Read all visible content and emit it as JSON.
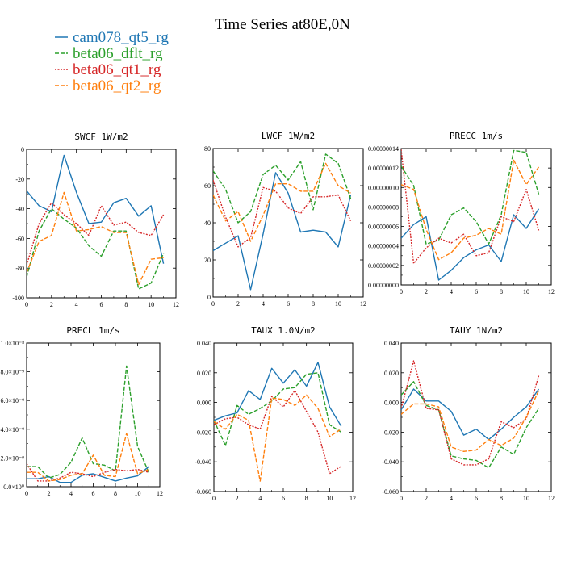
{
  "suptitle": "Time Series at80E,0N",
  "legend": [
    {
      "label": "cam078_qt5_rg",
      "color": "#1f77b4",
      "dash": "solid"
    },
    {
      "label": "beta06_dflt_rg",
      "color": "#2ca02c",
      "dash": "dashed"
    },
    {
      "label": "beta06_qt1_rg",
      "color": "#d62728",
      "dash": "dotted"
    },
    {
      "label": "beta06_qt2_rg",
      "color": "#ff7f0e",
      "dash": "dashed"
    }
  ],
  "chart_data": [
    {
      "type": "line",
      "title": "SWCF   1W/m2",
      "xlim": [
        0,
        12
      ],
      "xticks": [
        "0",
        "2",
        "4",
        "6",
        "8",
        "10",
        "12"
      ],
      "ylim": [
        -100,
        0
      ],
      "yticks": [
        "-100",
        "-80",
        "-60",
        "-40",
        "-20",
        "0"
      ],
      "x": [
        0,
        1,
        2,
        3,
        4,
        5,
        6,
        7,
        8,
        9,
        10,
        11
      ],
      "series": [
        {
          "name": "cam078_qt5_rg",
          "values": [
            -28,
            -38,
            -42,
            -4,
            -29,
            -50,
            -49,
            -36,
            -33,
            -45,
            -38,
            -77
          ]
        },
        {
          "name": "beta06_dflt_rg",
          "values": [
            -86,
            -55,
            -40,
            -47,
            -53,
            -65,
            -72,
            -55,
            -55,
            -94,
            -90,
            -70
          ]
        },
        {
          "name": "beta06_qt1_rg",
          "values": [
            -78,
            -50,
            -36,
            -44,
            -50,
            -58,
            -38,
            -51,
            -49,
            -56,
            -58,
            -44
          ]
        },
        {
          "name": "beta06_qt2_rg",
          "values": [
            -83,
            -62,
            -58,
            -29,
            -55,
            -54,
            -52,
            -56,
            -56,
            -91,
            -74,
            -73
          ]
        }
      ]
    },
    {
      "type": "line",
      "title": "LWCF   1W/m2",
      "xlim": [
        0,
        12
      ],
      "xticks": [
        "0",
        "2",
        "4",
        "6",
        "8",
        "10",
        "12"
      ],
      "ylim": [
        0,
        80
      ],
      "yticks": [
        "0",
        "20",
        "40",
        "60",
        "80"
      ],
      "x": [
        0,
        1,
        2,
        3,
        4,
        5,
        6,
        7,
        8,
        9,
        10,
        11
      ],
      "series": [
        {
          "name": "cam078_qt5_rg",
          "values": [
            25,
            29,
            33,
            4,
            34,
            67,
            56,
            35,
            36,
            35,
            27,
            55
          ]
        },
        {
          "name": "beta06_dflt_rg",
          "values": [
            68,
            58,
            40,
            46,
            66,
            71,
            63,
            73,
            47,
            77,
            72,
            53
          ]
        },
        {
          "name": "beta06_qt1_rg",
          "values": [
            63,
            43,
            27,
            32,
            59,
            57,
            48,
            45,
            54,
            54,
            55,
            41
          ]
        },
        {
          "name": "beta06_qt2_rg",
          "values": [
            55,
            41,
            46,
            30,
            44,
            61,
            61,
            57,
            57,
            72,
            60,
            56
          ]
        }
      ]
    },
    {
      "type": "line",
      "title": "PRECC   1m/s",
      "xlim": [
        0,
        12
      ],
      "xticks": [
        "0",
        "2",
        "4",
        "6",
        "8",
        "10",
        "12"
      ],
      "ylim": [
        0,
        1.4e-07
      ],
      "yticks": [
        "0.00000000",
        "0.00000002",
        "0.00000004",
        "0.00000006",
        "0.00000008",
        "0.00000010",
        "0.00000012",
        "0.00000014"
      ],
      "x": [
        0,
        1,
        2,
        3,
        4,
        5,
        6,
        7,
        8,
        9,
        10,
        11
      ],
      "series": [
        {
          "name": "cam078_qt5_rg",
          "values": [
            4.8e-08,
            6.2e-08,
            7e-08,
            5e-09,
            1.5e-08,
            2.8e-08,
            3.6e-08,
            4.1e-08,
            2.4e-08,
            7.2e-08,
            5.8e-08,
            7.8e-08
          ]
        },
        {
          "name": "beta06_dflt_rg",
          "values": [
            1.22e-07,
            1.02e-07,
            4.2e-08,
            4.6e-08,
            7.2e-08,
            7.9e-08,
            6.5e-08,
            4.2e-08,
            7.2e-08,
            1.38e-07,
            1.36e-07,
            9.3e-08
          ]
        },
        {
          "name": "beta06_qt1_rg",
          "values": [
            1.39e-07,
            2.2e-08,
            3.8e-08,
            4.8e-08,
            4.3e-08,
            5.2e-08,
            3e-08,
            3.3e-08,
            7e-08,
            6.5e-08,
            9.8e-08,
            5.6e-08
          ]
        },
        {
          "name": "beta06_qt2_rg",
          "values": [
            1.03e-07,
            9.8e-08,
            5.7e-08,
            2.6e-08,
            3.3e-08,
            4.8e-08,
            5.1e-08,
            5.8e-08,
            5.2e-08,
            1.28e-07,
            1.03e-07,
            1.21e-07
          ]
        }
      ]
    },
    {
      "type": "line",
      "title": "PRECL   1m/s",
      "xlim": [
        0,
        12
      ],
      "xticks": [
        "0",
        "2",
        "4",
        "6",
        "8",
        "10",
        "12"
      ],
      "ylim": [
        0,
        1e-08
      ],
      "yticks": [
        "0.0×10⁰",
        "2.0×10⁻⁹",
        "4.0×10⁻⁹",
        "6.0×10⁻⁹",
        "8.0×10⁻⁹",
        "1.0×10⁻⁸"
      ],
      "x": [
        0,
        1,
        2,
        3,
        4,
        5,
        6,
        7,
        8,
        9,
        10,
        11
      ],
      "series": [
        {
          "name": "cam078_qt5_rg",
          "values": [
            5.5e-10,
            5.5e-10,
            7e-10,
            3e-10,
            3e-10,
            8e-10,
            9e-10,
            6.5e-10,
            4e-10,
            6e-10,
            7.5e-10,
            1.4e-09
          ]
        },
        {
          "name": "beta06_dflt_rg",
          "values": [
            1.4e-09,
            1.4e-09,
            6e-10,
            8.5e-10,
            1.7e-09,
            3.4e-09,
            1.6e-09,
            1.5e-09,
            1.1e-09,
            8.4e-09,
            2.8e-09,
            1e-09
          ]
        },
        {
          "name": "beta06_qt1_rg",
          "values": [
            1.6e-09,
            4e-10,
            4e-10,
            6e-10,
            1e-09,
            9e-10,
            7e-10,
            1e-09,
            1.2e-09,
            1.1e-09,
            1.2e-09,
            1e-09
          ]
        },
        {
          "name": "beta06_qt2_rg",
          "values": [
            1e-09,
            1e-09,
            4e-10,
            5e-10,
            8e-10,
            9e-10,
            2.2e-09,
            8e-10,
            7e-10,
            3.7e-09,
            9e-10,
            1.2e-09
          ]
        }
      ]
    },
    {
      "type": "line",
      "title": "TAUX   1.0N/m2",
      "xlim": [
        0,
        12
      ],
      "xticks": [
        "0",
        "2",
        "4",
        "6",
        "8",
        "10",
        "12"
      ],
      "ylim": [
        -0.06,
        0.04
      ],
      "yticks": [
        "-0.060",
        "-0.040",
        "-0.020",
        "0.000",
        "0.020",
        "0.040"
      ],
      "x": [
        0,
        1,
        2,
        3,
        4,
        5,
        6,
        7,
        8,
        9,
        10,
        11
      ],
      "series": [
        {
          "name": "cam078_qt5_rg",
          "values": [
            -0.012,
            -0.009,
            -0.007,
            0.008,
            0.002,
            0.023,
            0.013,
            0.022,
            0.011,
            0.027,
            -0.003,
            -0.016
          ]
        },
        {
          "name": "beta06_dflt_rg",
          "values": [
            -0.012,
            -0.029,
            -0.002,
            -0.008,
            -0.004,
            0.001,
            0.009,
            0.01,
            0.019,
            0.02,
            -0.015,
            -0.02
          ]
        },
        {
          "name": "beta06_qt1_rg",
          "values": [
            -0.015,
            -0.011,
            -0.01,
            -0.015,
            -0.018,
            0.004,
            -0.003,
            0.008,
            -0.006,
            -0.02,
            -0.048,
            -0.043
          ]
        },
        {
          "name": "beta06_qt2_rg",
          "values": [
            -0.013,
            -0.018,
            -0.008,
            -0.012,
            -0.053,
            0.003,
            0.002,
            -0.002,
            0.005,
            -0.004,
            -0.023,
            -0.018
          ]
        }
      ]
    },
    {
      "type": "line",
      "title": "TAUY   1N/m2",
      "xlim": [
        0,
        12
      ],
      "xticks": [
        "0",
        "2",
        "4",
        "6",
        "8",
        "10",
        "12"
      ],
      "ylim": [
        -0.06,
        0.04
      ],
      "yticks": [
        "-0.060",
        "-0.040",
        "-0.020",
        "0.000",
        "0.020",
        "0.040"
      ],
      "x": [
        0,
        1,
        2,
        3,
        4,
        5,
        6,
        7,
        8,
        9,
        10,
        11
      ],
      "series": [
        {
          "name": "cam078_qt5_rg",
          "values": [
            -0.005,
            0.009,
            0.001,
            0.001,
            -0.006,
            -0.022,
            -0.018,
            -0.025,
            -0.018,
            -0.01,
            -0.003,
            0.009
          ]
        },
        {
          "name": "beta06_dflt_rg",
          "values": [
            0.005,
            0.014,
            -0.002,
            -0.005,
            -0.036,
            -0.038,
            -0.039,
            -0.044,
            -0.03,
            -0.035,
            -0.017,
            -0.004
          ]
        },
        {
          "name": "beta06_qt1_rg",
          "values": [
            -0.004,
            0.028,
            -0.004,
            -0.005,
            -0.038,
            -0.042,
            -0.042,
            -0.038,
            -0.013,
            -0.017,
            -0.011,
            0.018
          ]
        },
        {
          "name": "beta06_qt2_rg",
          "values": [
            -0.008,
            -0.001,
            -0.001,
            -0.003,
            -0.03,
            -0.033,
            -0.032,
            -0.025,
            -0.029,
            -0.024,
            -0.01,
            0.008
          ]
        }
      ]
    }
  ]
}
